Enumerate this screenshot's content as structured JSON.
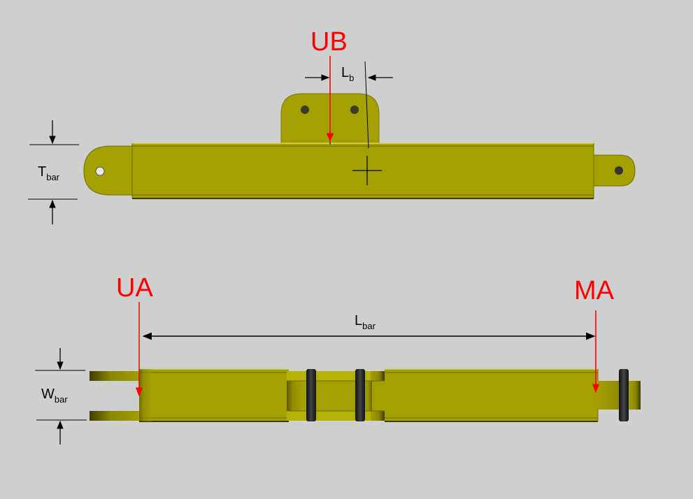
{
  "labels": {
    "ub": "UB",
    "ua": "UA",
    "ma": "MA",
    "lb_main": "L",
    "lb_sub": "b",
    "tbar_main": "T",
    "tbar_sub": "bar",
    "wbar_main": "W",
    "wbar_sub": "bar",
    "lbar_main": "L",
    "lbar_sub": "bar"
  },
  "colors": {
    "background": "#cfcfcf",
    "bar": "#a3a000",
    "bar_dark": "#6e6b00",
    "pin": "#1f1f1f",
    "marker": "#ff0000",
    "dimension": "#000000"
  }
}
